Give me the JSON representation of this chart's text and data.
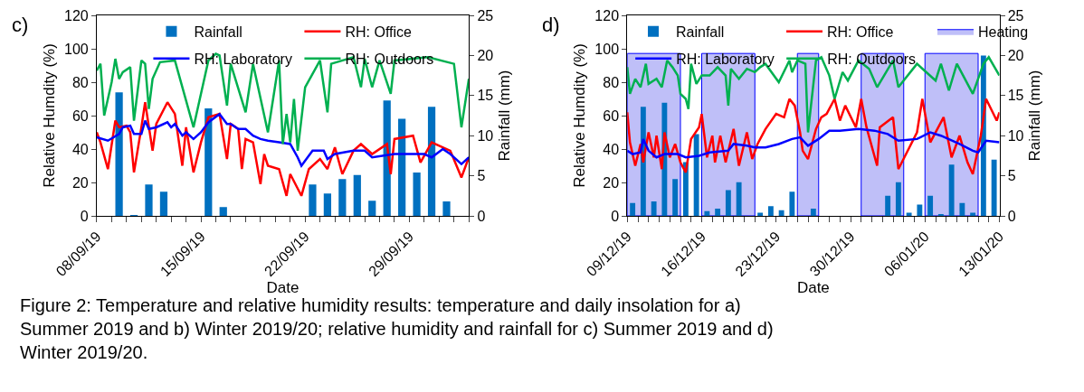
{
  "chart_data": [
    {
      "type": "line",
      "xlabel": "Date",
      "ylabel": "Relative Humdity (%)",
      "y2label": "Rainfall (mm)",
      "legend": "top",
      "annotations": [
        "c)",
        "Figure 2: Temperature and relative humidity results: temperature and daily insolation for a) Summer 2019 and b) Winter 2019/20; relative humidity and rainfall for c) Summer 2019 and d) Winter 2019/20."
      ],
      "xlim": [
        "2019-09-08",
        "2019-10-03"
      ],
      "xticks": [
        {
          "value": "2019-09-08",
          "label": "08/09/19"
        },
        {
          "value": "2019-09-09",
          "label": null
        },
        {
          "value": "2019-09-10",
          "label": null
        },
        {
          "value": "2019-09-11",
          "label": null
        },
        {
          "value": "2019-09-12",
          "label": null
        },
        {
          "value": "2019-09-13",
          "label": null
        },
        {
          "value": "2019-09-14",
          "label": null
        },
        {
          "value": "2019-09-15",
          "label": "15/09/19"
        },
        {
          "value": "2019-09-16",
          "label": null
        },
        {
          "value": "2019-09-17",
          "label": null
        },
        {
          "value": "2019-09-18",
          "label": null
        },
        {
          "value": "2019-09-19",
          "label": null
        },
        {
          "value": "2019-09-20",
          "label": null
        },
        {
          "value": "2019-09-21",
          "label": null
        },
        {
          "value": "2019-09-22",
          "label": "22/09/19"
        },
        {
          "value": "2019-09-23",
          "label": null
        },
        {
          "value": "2019-09-24",
          "label": null
        },
        {
          "value": "2019-09-25",
          "label": null
        },
        {
          "value": "2019-09-26",
          "label": null
        },
        {
          "value": "2019-09-27",
          "label": null
        },
        {
          "value": "2019-09-28",
          "label": null
        },
        {
          "value": "2019-09-29",
          "label": "29/09/19"
        },
        {
          "value": "2019-09-30",
          "label": null
        },
        {
          "value": "2019-10-01",
          "label": null
        },
        {
          "value": "2019-10-02",
          "label": null
        },
        {
          "value": "2019-10-03",
          "label": null
        }
      ],
      "ylim": [
        0,
        120
      ],
      "yticks": [
        0,
        20,
        40,
        60,
        80,
        100,
        120
      ],
      "y2lim": [
        0,
        25
      ],
      "y2ticks": [
        0,
        5,
        10,
        15,
        20,
        25
      ],
      "series": [
        {
          "name": "Rainfall",
          "type": "bar",
          "axis": "y2",
          "color": "#0070c0",
          "x": [
            "2019-09-09T12:00",
            "2019-09-10T12:00",
            "2019-09-11T12:00",
            "2019-09-12T12:00",
            "2019-09-15T12:00",
            "2019-09-16T12:00",
            "2019-09-22T12:00",
            "2019-09-23T12:00",
            "2019-09-24T12:00",
            "2019-09-25T12:00",
            "2019-09-26T12:00",
            "2019-09-27T12:00",
            "2019-09-28T12:00",
            "2019-09-29T12:00",
            "2019-09-30T12:00",
            "2019-10-01T12:00"
          ],
          "values": [
            15.4,
            0.1,
            3.9,
            3.0,
            13.4,
            1.1,
            3.9,
            2.8,
            4.6,
            5.1,
            1.9,
            14.4,
            12.1,
            5.4,
            13.6,
            1.8
          ]
        },
        {
          "name": "RH: Office",
          "color": "#ff0000",
          "x": [
            "2019-09-08T00:00",
            "2019-09-08T06:00",
            "2019-09-08T18:00",
            "2019-09-09T06:00",
            "2019-09-09T12:00",
            "2019-09-10T00:00",
            "2019-09-10T06:00",
            "2019-09-10T12:00",
            "2019-09-11T00:00",
            "2019-09-11T06:00",
            "2019-09-11T18:00",
            "2019-09-12T00:00",
            "2019-09-12T18:00",
            "2019-09-13T06:00",
            "2019-09-13T18:00",
            "2019-09-14T00:00",
            "2019-09-14T12:00",
            "2019-09-15T00:00",
            "2019-09-15T12:00",
            "2019-09-16T06:00",
            "2019-09-16T18:00",
            "2019-09-17T00:00",
            "2019-09-17T12:00",
            "2019-09-17T18:00",
            "2019-09-18T00:00",
            "2019-09-18T12:00",
            "2019-09-19T00:00",
            "2019-09-19T06:00",
            "2019-09-19T12:00",
            "2019-09-20T06:00",
            "2019-09-20T18:00",
            "2019-09-21T00:00",
            "2019-09-21T18:00",
            "2019-09-22T06:00",
            "2019-09-23T00:00",
            "2019-09-23T12:00",
            "2019-09-24T00:00",
            "2019-09-24T12:00",
            "2019-09-25T06:00",
            "2019-09-25T18:00",
            "2019-09-26T12:00",
            "2019-09-27T12:00",
            "2019-09-27T18:00",
            "2019-09-28T00:00",
            "2019-09-29T06:00",
            "2019-09-29T18:00",
            "2019-09-30T12:00",
            "2019-10-01T18:00",
            "2019-10-02T12:00",
            "2019-10-03T00:00"
          ],
          "values": [
            50,
            44,
            28,
            57,
            53,
            54,
            50,
            26,
            53,
            68,
            39,
            55,
            68,
            61,
            30,
            53,
            26,
            44,
            59,
            61,
            34,
            55,
            52,
            28,
            46,
            44,
            19,
            37,
            30,
            28,
            12,
            25,
            12,
            28,
            34,
            28,
            41,
            25,
            39,
            43,
            37,
            43,
            25,
            46,
            48,
            32,
            44,
            39,
            23,
            35
          ]
        },
        {
          "name": "RH: Laboratory",
          "color": "#0000ff",
          "x": [
            "2019-09-08T00:00",
            "2019-09-08T18:00",
            "2019-09-09T12:00",
            "2019-09-09T18:00",
            "2019-09-10T06:00",
            "2019-09-10T12:00",
            "2019-09-11T00:00",
            "2019-09-11T06:00",
            "2019-09-11T12:00",
            "2019-09-12T00:00",
            "2019-09-12T18:00",
            "2019-09-13T00:00",
            "2019-09-13T06:00",
            "2019-09-13T18:00",
            "2019-09-14T00:00",
            "2019-09-14T12:00",
            "2019-09-15T00:00",
            "2019-09-15T12:00",
            "2019-09-16T06:00",
            "2019-09-16T18:00",
            "2019-09-17T00:00",
            "2019-09-17T12:00",
            "2019-09-18T00:00",
            "2019-09-18T12:00",
            "2019-09-19T00:00",
            "2019-09-19T12:00",
            "2019-09-20T06:00",
            "2019-09-21T00:00",
            "2019-09-21T12:00",
            "2019-09-21T18:00",
            "2019-09-22T12:00",
            "2019-09-23T06:00",
            "2019-09-23T12:00",
            "2019-09-24T00:00",
            "2019-09-25T06:00",
            "2019-09-26T00:00",
            "2019-09-26T12:00",
            "2019-09-28T00:00",
            "2019-09-29T00:00",
            "2019-09-30T00:00",
            "2019-09-30T12:00",
            "2019-10-01T06:00",
            "2019-10-01T18:00",
            "2019-10-02T12:00",
            "2019-10-03T00:00"
          ],
          "values": [
            47,
            45,
            49,
            53,
            54,
            49,
            49,
            57,
            52,
            53,
            56,
            53,
            55,
            48,
            50,
            46,
            50,
            56,
            61,
            55,
            55,
            52,
            52,
            48,
            46,
            45,
            44,
            43,
            35,
            30,
            39,
            39,
            34,
            37,
            39,
            39,
            35,
            37,
            37,
            37,
            35,
            40,
            37,
            31,
            35
          ]
        },
        {
          "name": "RH: Outdoors",
          "color": "#00b050",
          "x": [
            "2019-09-08T00:00",
            "2019-09-08T06:00",
            "2019-09-08T12:00",
            "2019-09-09T00:00",
            "2019-09-09T06:00",
            "2019-09-09T12:00",
            "2019-09-09T18:00",
            "2019-09-10T06:00",
            "2019-09-10T12:00",
            "2019-09-11T00:00",
            "2019-09-11T06:00",
            "2019-09-11T12:00",
            "2019-09-11T18:00",
            "2019-09-12T06:00",
            "2019-09-13T06:00",
            "2019-09-14T12:00",
            "2019-09-15T12:00",
            "2019-09-16T00:00",
            "2019-09-16T06:00",
            "2019-09-16T18:00",
            "2019-09-17T00:00",
            "2019-09-18T00:00",
            "2019-09-18T12:00",
            "2019-09-19T12:00",
            "2019-09-20T06:00",
            "2019-09-20T12:00",
            "2019-09-20T18:00",
            "2019-09-21T00:00",
            "2019-09-21T06:00",
            "2019-09-21T12:00",
            "2019-09-22T00:00",
            "2019-09-23T00:00",
            "2019-09-23T12:00",
            "2019-09-23T18:00",
            "2019-09-25T06:00",
            "2019-09-25T18:00",
            "2019-09-26T00:00",
            "2019-09-26T12:00",
            "2019-09-27T00:00",
            "2019-09-27T18:00",
            "2019-09-28T00:00",
            "2019-09-30T06:00",
            "2019-10-02T00:00",
            "2019-10-02T12:00",
            "2019-10-03T00:00"
          ],
          "values": [
            87,
            91,
            60,
            80,
            94,
            82,
            86,
            89,
            57,
            93,
            91,
            64,
            82,
            92,
            93,
            53,
            93,
            97,
            96,
            66,
            91,
            62,
            91,
            50,
            93,
            43,
            61,
            44,
            70,
            39,
            77,
            93,
            62,
            91,
            95,
            77,
            94,
            77,
            93,
            73,
            93,
            95,
            91,
            53,
            82
          ]
        }
      ]
    },
    {
      "type": "line",
      "xlabel": "Date",
      "ylabel": "Relative Humdity (%)",
      "y2label": "Rainfall (mm)",
      "legend": "top",
      "annotations": [
        "d)"
      ],
      "xlim": [
        "2019-12-09",
        "2020-01-13"
      ],
      "xticks": [
        {
          "value": "2019-12-09",
          "label": "09/12/19"
        },
        {
          "value": "2019-12-10",
          "label": null
        },
        {
          "value": "2019-12-11",
          "label": null
        },
        {
          "value": "2019-12-12",
          "label": null
        },
        {
          "value": "2019-12-13",
          "label": null
        },
        {
          "value": "2019-12-14",
          "label": null
        },
        {
          "value": "2019-12-15",
          "label": null
        },
        {
          "value": "2019-12-16",
          "label": "16/12/19"
        },
        {
          "value": "2019-12-17",
          "label": null
        },
        {
          "value": "2019-12-18",
          "label": null
        },
        {
          "value": "2019-12-19",
          "label": null
        },
        {
          "value": "2019-12-20",
          "label": null
        },
        {
          "value": "2019-12-21",
          "label": null
        },
        {
          "value": "2019-12-22",
          "label": null
        },
        {
          "value": "2019-12-23",
          "label": "23/12/19"
        },
        {
          "value": "2019-12-24",
          "label": null
        },
        {
          "value": "2019-12-25",
          "label": null
        },
        {
          "value": "2019-12-26",
          "label": null
        },
        {
          "value": "2019-12-27",
          "label": null
        },
        {
          "value": "2019-12-28",
          "label": null
        },
        {
          "value": "2019-12-29",
          "label": null
        },
        {
          "value": "2019-12-30",
          "label": "30/12/19"
        },
        {
          "value": "2019-12-31",
          "label": null
        },
        {
          "value": "2020-01-01",
          "label": null
        },
        {
          "value": "2020-01-02",
          "label": null
        },
        {
          "value": "2020-01-03",
          "label": null
        },
        {
          "value": "2020-01-04",
          "label": null
        },
        {
          "value": "2020-01-05",
          "label": null
        },
        {
          "value": "2020-01-06",
          "label": "06/01/20"
        },
        {
          "value": "2020-01-07",
          "label": null
        },
        {
          "value": "2020-01-08",
          "label": null
        },
        {
          "value": "2020-01-09",
          "label": null
        },
        {
          "value": "2020-01-10",
          "label": null
        },
        {
          "value": "2020-01-11",
          "label": null
        },
        {
          "value": "2020-01-12",
          "label": null
        },
        {
          "value": "2020-01-13",
          "label": "13/01/20"
        }
      ],
      "ylim": [
        0,
        120
      ],
      "yticks": [
        0,
        20,
        40,
        60,
        80,
        100,
        120
      ],
      "y2lim": [
        0,
        25
      ],
      "y2ticks": [
        0,
        5,
        10,
        15,
        20,
        25
      ],
      "bands": [
        {
          "axis": "x",
          "from": "2019-12-09",
          "to": "2019-12-14",
          "label": "Heating",
          "color": "#bfbff8"
        },
        {
          "axis": "x",
          "from": "2019-12-16",
          "to": "2019-12-21",
          "color": "#bfbff8"
        },
        {
          "axis": "x",
          "from": "2019-12-25",
          "to": "2019-12-27",
          "color": "#bfbff8"
        },
        {
          "axis": "x",
          "from": "2019-12-31",
          "to": "2020-01-04",
          "color": "#bfbff8"
        },
        {
          "axis": "x",
          "from": "2020-01-06",
          "to": "2020-01-11",
          "color": "#bfbff8"
        }
      ],
      "series": [
        {
          "name": "Rainfall",
          "type": "bar",
          "axis": "y2",
          "color": "#0070c0",
          "x": [
            "2019-12-09T12:00",
            "2019-12-10T12:00",
            "2019-12-11T12:00",
            "2019-12-12T12:00",
            "2019-12-13T12:00",
            "2019-12-14T12:00",
            "2019-12-15T12:00",
            "2019-12-16T12:00",
            "2019-12-17T12:00",
            "2019-12-18T12:00",
            "2019-12-19T12:00",
            "2019-12-21T12:00",
            "2019-12-22T12:00",
            "2019-12-23T12:00",
            "2019-12-24T12:00",
            "2019-12-26T12:00",
            "2020-01-02T12:00",
            "2020-01-03T12:00",
            "2020-01-04T12:00",
            "2020-01-05T12:00",
            "2020-01-06T12:00",
            "2020-01-07T12:00",
            "2020-01-08T12:00",
            "2020-01-09T12:00",
            "2020-01-10T12:00",
            "2020-01-11T12:00",
            "2020-01-12T12:00"
          ],
          "values": [
            1.6,
            13.6,
            1.8,
            14.1,
            4.6,
            6.7,
            10.2,
            0.6,
            0.9,
            3.2,
            4.2,
            0.4,
            1.2,
            0.7,
            3.0,
            0.9,
            2.5,
            4.2,
            0.4,
            1.4,
            2.5,
            0.2,
            6.4,
            1.6,
            0.4,
            20.0,
            7.0
          ]
        },
        {
          "name": "RH: Office",
          "color": "#ff0000",
          "x": [
            "2019-12-09T00:00",
            "2019-12-09T06:00",
            "2019-12-09T18:00",
            "2019-12-10T06:00",
            "2019-12-10T12:00",
            "2019-12-11T00:00",
            "2019-12-11T12:00",
            "2019-12-11T18:00",
            "2019-12-12T06:00",
            "2019-12-12T12:00",
            "2019-12-13T00:00",
            "2019-12-13T12:00",
            "2019-12-14T00:00",
            "2019-12-14T12:00",
            "2019-12-15T00:00",
            "2019-12-15T18:00",
            "2019-12-16T00:00",
            "2019-12-16T12:00",
            "2019-12-17T00:00",
            "2019-12-17T06:00",
            "2019-12-17T18:00",
            "2019-12-18T06:00",
            "2019-12-19T00:00",
            "2019-12-19T12:00",
            "2019-12-20T06:00",
            "2019-12-20T18:00",
            "2019-12-21T06:00",
            "2019-12-22T00:00",
            "2019-12-23T00:00",
            "2019-12-23T18:00",
            "2019-12-24T06:00",
            "2019-12-24T18:00",
            "2019-12-25T06:00",
            "2019-12-25T12:00",
            "2019-12-26T00:00",
            "2019-12-26T18:00",
            "2019-12-27T06:00",
            "2019-12-27T18:00",
            "2019-12-28T12:00",
            "2019-12-29T00:00",
            "2019-12-29T12:00",
            "2019-12-30T12:00",
            "2019-12-31T00:00",
            "2019-12-31T12:00",
            "2020-01-01T12:00",
            "2020-01-01T18:00",
            "2020-01-03T00:00",
            "2020-01-03T12:00",
            "2020-01-05T06:00",
            "2020-01-05T18:00",
            "2020-01-06T12:00",
            "2020-01-07T18:00",
            "2020-01-08T12:00",
            "2020-01-09T06:00",
            "2020-01-10T00:00",
            "2020-01-10T12:00",
            "2020-01-11T06:00",
            "2020-01-11T18:00",
            "2020-01-12T18:00",
            "2020-01-13T00:00"
          ],
          "values": [
            62,
            44,
            30,
            43,
            32,
            50,
            35,
            48,
            28,
            50,
            35,
            43,
            32,
            26,
            46,
            53,
            61,
            35,
            48,
            32,
            48,
            32,
            52,
            30,
            50,
            34,
            43,
            52,
            61,
            59,
            70,
            66,
            50,
            39,
            34,
            52,
            59,
            61,
            70,
            57,
            66,
            53,
            70,
            53,
            30,
            53,
            59,
            28,
            50,
            70,
            44,
            59,
            35,
            48,
            32,
            25,
            48,
            70,
            57,
            62
          ]
        },
        {
          "name": "RH: Laboratory",
          "color": "#0000ff",
          "x": [
            "2019-12-09T00:00",
            "2019-12-09T12:00",
            "2019-12-10T06:00",
            "2019-12-10T12:00",
            "2019-12-11T00:00",
            "2019-12-11T18:00",
            "2019-12-12T12:00",
            "2019-12-13T18:00",
            "2019-12-14T12:00",
            "2019-12-15T18:00",
            "2019-12-16T18:00",
            "2019-12-18T12:00",
            "2019-12-19T00:00",
            "2019-12-20T06:00",
            "2019-12-21T00:00",
            "2019-12-22T00:00",
            "2019-12-23T06:00",
            "2019-12-24T12:00",
            "2019-12-25T06:00",
            "2019-12-26T00:00",
            "2019-12-27T00:00",
            "2019-12-28T00:00",
            "2019-12-29T00:00",
            "2019-12-30T18:00",
            "2020-01-01T06:00",
            "2020-01-02T12:00",
            "2020-01-03T12:00",
            "2020-01-05T06:00",
            "2020-01-06T12:00",
            "2020-01-07T12:00",
            "2020-01-09T06:00",
            "2020-01-10T12:00",
            "2020-01-11T00:00",
            "2020-01-11T18:00",
            "2020-01-13T00:00"
          ],
          "values": [
            39,
            37,
            38,
            46,
            39,
            35,
            37,
            37,
            35,
            36,
            38,
            39,
            43,
            42,
            41,
            41,
            43,
            46,
            47,
            42,
            46,
            51,
            51,
            52,
            51,
            49,
            45,
            46,
            50,
            48,
            43,
            39,
            38,
            45,
            44
          ]
        },
        {
          "name": "RH: Outdoors",
          "color": "#00b050",
          "x": [
            "2019-12-09T00:00",
            "2019-12-09T06:00",
            "2019-12-09T18:00",
            "2019-12-10T06:00",
            "2019-12-10T18:00",
            "2019-12-11T00:00",
            "2019-12-11T18:00",
            "2019-12-12T06:00",
            "2019-12-12T18:00",
            "2019-12-13T06:00",
            "2019-12-13T18:00",
            "2019-12-14T00:00",
            "2019-12-14T12:00",
            "2019-12-14T18:00",
            "2019-12-15T00:00",
            "2019-12-15T12:00",
            "2019-12-16T00:00",
            "2019-12-16T18:00",
            "2019-12-17T12:00",
            "2019-12-18T06:00",
            "2019-12-18T12:00",
            "2019-12-18T18:00",
            "2019-12-19T12:00",
            "2019-12-20T06:00",
            "2019-12-21T00:00",
            "2019-12-21T12:00",
            "2019-12-22T00:00",
            "2019-12-23T06:00",
            "2019-12-24T06:00",
            "2019-12-24T12:00",
            "2019-12-25T00:00",
            "2019-12-25T18:00",
            "2019-12-26T00:00",
            "2019-12-26T18:00",
            "2019-12-27T06:00",
            "2019-12-28T00:00",
            "2019-12-28T12:00",
            "2019-12-29T06:00",
            "2019-12-29T18:00",
            "2019-12-30T18:00",
            "2019-12-31T18:00",
            "2020-01-01T12:00",
            "2020-01-03T00:00",
            "2020-01-03T12:00",
            "2020-01-05T06:00",
            "2020-01-07T00:00",
            "2020-01-07T12:00",
            "2020-01-08T06:00",
            "2020-01-09T00:00",
            "2020-01-10T12:00",
            "2020-01-11T12:00",
            "2020-01-12T00:00",
            "2020-01-13T00:00"
          ],
          "values": [
            89,
            73,
            82,
            77,
            91,
            79,
            82,
            77,
            93,
            89,
            84,
            73,
            70,
            64,
            91,
            79,
            84,
            84,
            89,
            84,
            66,
            88,
            82,
            88,
            86,
            89,
            91,
            80,
            93,
            86,
            93,
            91,
            50,
            93,
            95,
            84,
            70,
            86,
            81,
            93,
            88,
            77,
            93,
            77,
            91,
            81,
            91,
            75,
            91,
            73,
            91,
            95,
            84
          ]
        }
      ]
    }
  ]
}
